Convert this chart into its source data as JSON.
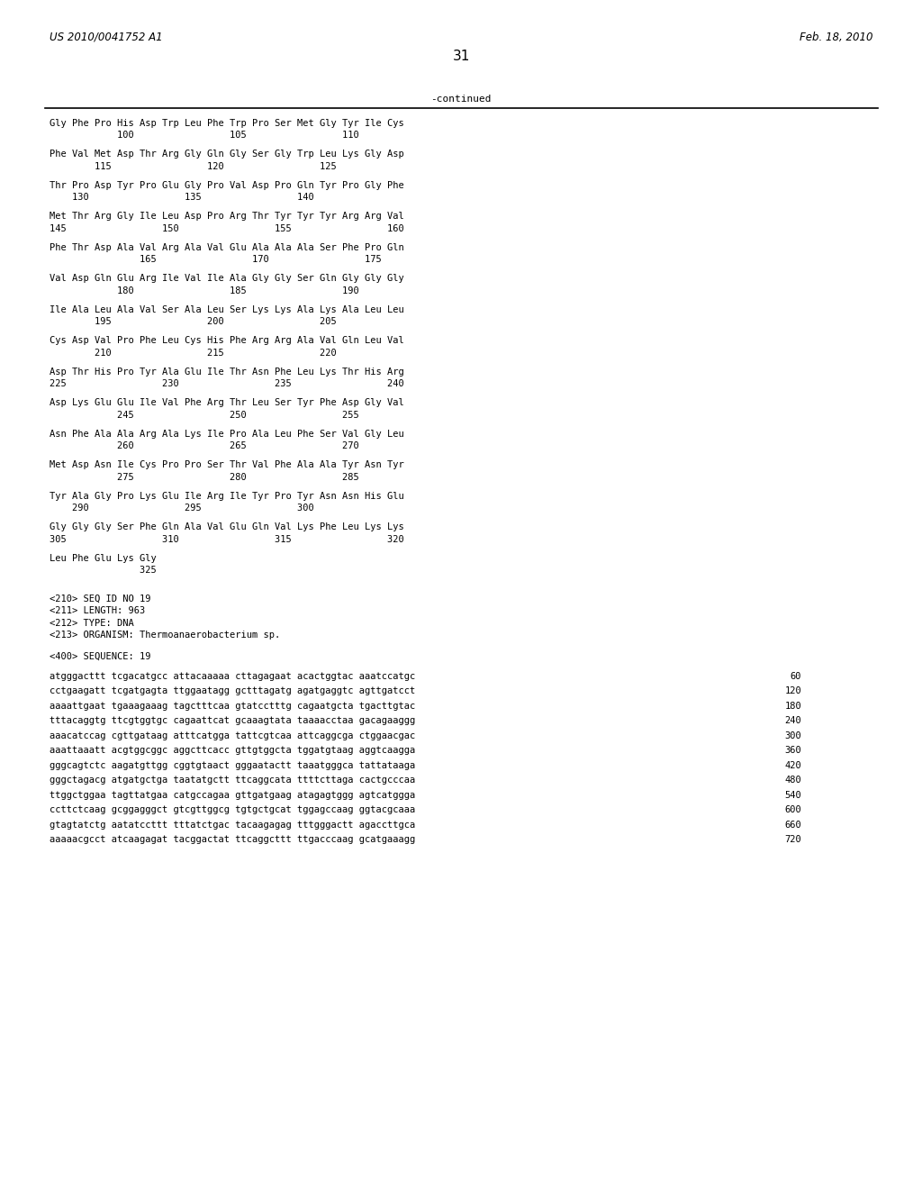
{
  "header_left": "US 2010/0041752 A1",
  "header_right": "Feb. 18, 2010",
  "page_number": "31",
  "continued_label": "-continued",
  "background_color": "#ffffff",
  "text_color": "#000000",
  "aa_lines": [
    "Gly Phe Pro His Asp Trp Leu Phe Trp Pro Ser Met Gly Tyr Ile Cys",
    "            100                 105                 110",
    "",
    "Phe Val Met Asp Thr Arg Gly Gln Gly Ser Gly Trp Leu Lys Gly Asp",
    "        115                 120                 125",
    "",
    "Thr Pro Asp Tyr Pro Glu Gly Pro Val Asp Pro Gln Tyr Pro Gly Phe",
    "    130                 135                 140",
    "",
    "Met Thr Arg Gly Ile Leu Asp Pro Arg Thr Tyr Tyr Tyr Arg Arg Val",
    "145                 150                 155                 160",
    "",
    "Phe Thr Asp Ala Val Arg Ala Val Glu Ala Ala Ala Ser Phe Pro Gln",
    "                165                 170                 175",
    "",
    "Val Asp Gln Glu Arg Ile Val Ile Ala Gly Gly Ser Gln Gly Gly Gly",
    "            180                 185                 190",
    "",
    "Ile Ala Leu Ala Val Ser Ala Leu Ser Lys Lys Ala Lys Ala Leu Leu",
    "        195                 200                 205",
    "",
    "Cys Asp Val Pro Phe Leu Cys His Phe Arg Arg Ala Val Gln Leu Val",
    "        210                 215                 220",
    "",
    "Asp Thr His Pro Tyr Ala Glu Ile Thr Asn Phe Leu Lys Thr His Arg",
    "225                 230                 235                 240",
    "",
    "Asp Lys Glu Glu Ile Val Phe Arg Thr Leu Ser Tyr Phe Asp Gly Val",
    "            245                 250                 255",
    "",
    "Asn Phe Ala Ala Arg Ala Lys Ile Pro Ala Leu Phe Ser Val Gly Leu",
    "            260                 265                 270",
    "",
    "Met Asp Asn Ile Cys Pro Pro Ser Thr Val Phe Ala Ala Tyr Asn Tyr",
    "            275                 280                 285",
    "",
    "Tyr Ala Gly Pro Lys Glu Ile Arg Ile Tyr Pro Tyr Asn Asn His Glu",
    "    290                 295                 300",
    "",
    "Gly Gly Gly Ser Phe Gln Ala Val Glu Gln Val Lys Phe Leu Lys Lys",
    "305                 310                 315                 320",
    "",
    "Leu Phe Glu Lys Gly",
    "                325"
  ],
  "metadata_lines": [
    "<210> SEQ ID NO 19",
    "<211> LENGTH: 963",
    "<212> TYPE: DNA",
    "<213> ORGANISM: Thermoanaerobacterium sp."
  ],
  "sequence_header": "<400> SEQUENCE: 19",
  "sequence_lines": [
    {
      "seq": "atgggacttt tcgacatgcc attacaaaaa cttagagaat acactggtac aaatccatgc",
      "num": "60"
    },
    {
      "seq": "cctgaagatt tcgatgagta ttggaatagg gctttagatg agatgaggtc agttgatcct",
      "num": "120"
    },
    {
      "seq": "aaaattgaat tgaaagaaag tagctttcaa gtatcctttg cagaatgcta tgacttgtac",
      "num": "180"
    },
    {
      "seq": "tttacaggtg ttcgtggtgc cagaattcat gcaaagtata taaaacctaa gacagaaggg",
      "num": "240"
    },
    {
      "seq": "aaacatccag cgttgataag atttcatgga tattcgtcaa attcaggcga ctggaacgac",
      "num": "300"
    },
    {
      "seq": "aaattaaatt acgtggcggc aggcttcacc gttgtggcta tggatgtaag aggtcaagga",
      "num": "360"
    },
    {
      "seq": "gggcagtctc aagatgttgg cggtgtaact gggaatactt taaatgggca tattataaga",
      "num": "420"
    },
    {
      "seq": "gggctagacg atgatgctga taatatgctt ttcaggcata ttttcttaga cactgcccaa",
      "num": "480"
    },
    {
      "seq": "ttggctggaa tagttatgaa catgccagaa gttgatgaag atagagtggg agtcatggga",
      "num": "540"
    },
    {
      "seq": "ccttctcaag gcggagggct gtcgttggcg tgtgctgcat tggagccaag ggtacgcaaa",
      "num": "600"
    },
    {
      "seq": "gtagtatctg aatatccttt tttatctgac tacaagagag tttgggactt agaccttgca",
      "num": "660"
    },
    {
      "seq": "aaaaacgcct atcaagagat tacggactat ttcaggcttt ttgacccaag gcatgaaagg",
      "num": "720"
    }
  ]
}
